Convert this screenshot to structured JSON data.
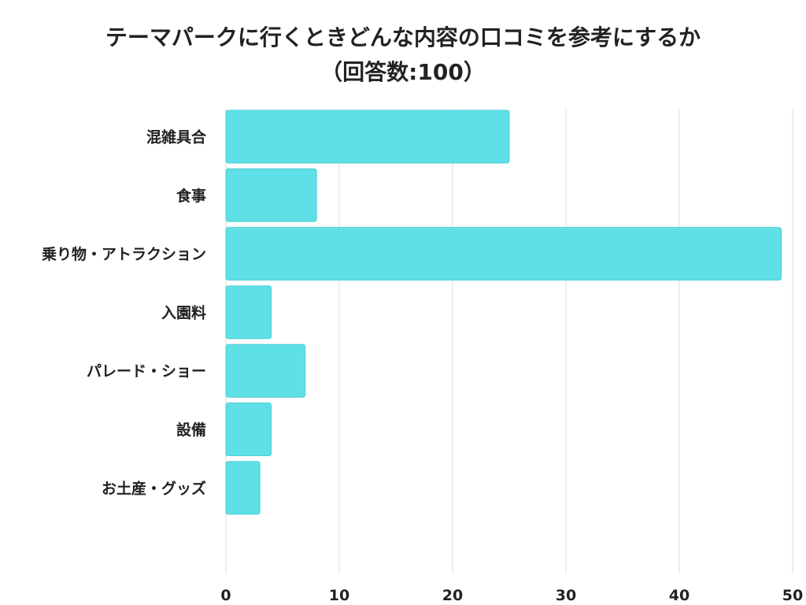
{
  "chart_data": {
    "type": "bar",
    "orientation": "horizontal",
    "title_line1": "テーマパークに行くときどんな内容の口コミを参考にするか",
    "title_line2": "（回答数:100）",
    "categories": [
      "混雑具合",
      "食事",
      "乗り物・アトラクション",
      "入園料",
      "パレード・ショー",
      "設備",
      "お土産・グッズ"
    ],
    "values": [
      25,
      8,
      49,
      4,
      7,
      4,
      3
    ],
    "xlim": [
      0,
      50
    ],
    "ticks": [
      0,
      10,
      20,
      30,
      40,
      50
    ],
    "grid": true,
    "xlabel": "",
    "ylabel": "",
    "colors": {
      "bar": "#5ee0e6",
      "bar_stroke": "#4fd0d6",
      "grid": "#e2e2e2",
      "text": "#222222"
    }
  }
}
